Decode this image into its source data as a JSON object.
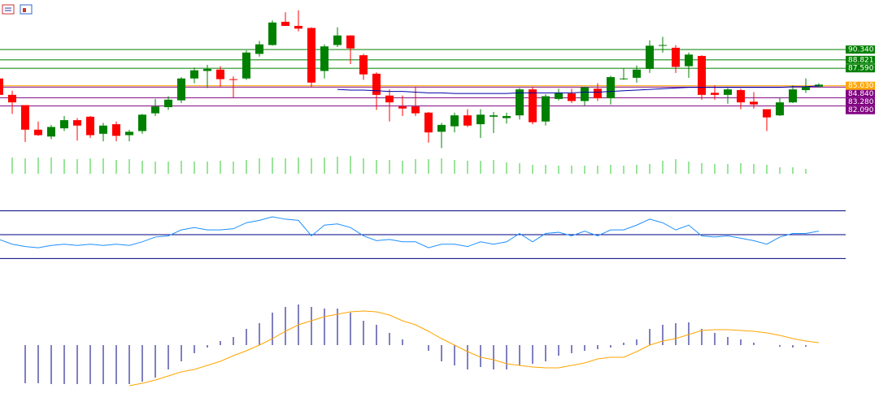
{
  "chart_data": [
    {
      "type": "candlestick",
      "up_color": "#008000",
      "down_color": "#ff0000",
      "ylim": [
        75,
        97
      ],
      "open": [
        86.1,
        83.7,
        82.2,
        78.6,
        77.6,
        78.8,
        80.0,
        80.5,
        78.0,
        79.4,
        77.8,
        78.4,
        81.0,
        81.9,
        82.9,
        86.1,
        87.2,
        87.4,
        86.0,
        86.1,
        89.7,
        91.0,
        94.4,
        93.8,
        93.5,
        87.2,
        91.0,
        92.4,
        89.5,
        86.8,
        83.6,
        82.0,
        82.0,
        81.1,
        78.3,
        79.1,
        80.7,
        79.4,
        80.5,
        80.3,
        80.7,
        84.5,
        79.8,
        83.1,
        83.9,
        82.8,
        84.6,
        83.2,
        86.0,
        86.2,
        87.5,
        91.0,
        90.6,
        87.9,
        89.4,
        84.0,
        83.7,
        84.4,
        82.7,
        81.6,
        80.7,
        82.6,
        84.4,
        84.9
      ],
      "high": [
        86.5,
        84.3,
        82.2,
        79.8,
        79.3,
        80.6,
        80.3,
        80.6,
        79.6,
        79.8,
        78.6,
        80.9,
        83.1,
        83.5,
        86.3,
        87.7,
        88.1,
        87.9,
        86.4,
        90.2,
        91.6,
        94.6,
        95.8,
        96.1,
        93.6,
        91.1,
        93.6,
        92.4,
        89.7,
        87.0,
        84.5,
        83.6,
        84.9,
        81.2,
        79.6,
        81.1,
        81.6,
        81.6,
        81.2,
        81.1,
        84.7,
        84.9,
        83.8,
        84.6,
        84.6,
        84.9,
        85.4,
        86.5,
        87.6,
        88.0,
        91.7,
        92.2,
        91.0,
        89.9,
        89.5,
        85.1,
        84.7,
        84.6,
        84.1,
        81.6,
        83.3,
        85.1,
        86.1,
        85.4
      ],
      "low": [
        83.5,
        80.9,
        76.8,
        77.7,
        77.2,
        78.4,
        77.0,
        77.4,
        76.9,
        76.9,
        76.9,
        78.0,
        80.6,
        81.5,
        82.5,
        85.4,
        84.7,
        84.9,
        83.3,
        85.9,
        89.3,
        90.9,
        93.8,
        93.0,
        84.8,
        86.1,
        90.7,
        88.2,
        85.9,
        81.5,
        79.8,
        80.6,
        80.6,
        76.7,
        75.9,
        78.2,
        79.0,
        77.4,
        78.1,
        79.5,
        80.1,
        79.4,
        79.2,
        82.9,
        82.5,
        82.1,
        82.8,
        82.3,
        85.9,
        85.5,
        86.9,
        89.9,
        86.9,
        86.2,
        83.0,
        83.0,
        82.4,
        81.6,
        81.7,
        78.4,
        80.6,
        82.5,
        84.0,
        84.8
      ],
      "close": [
        83.7,
        82.6,
        78.6,
        77.8,
        79.0,
        80.0,
        79.2,
        77.8,
        79.2,
        77.7,
        78.3,
        80.8,
        82.0,
        83.0,
        86.1,
        87.3,
        87.5,
        86.0,
        85.9,
        89.9,
        91.1,
        94.3,
        93.8,
        93.4,
        85.5,
        90.8,
        92.4,
        90.5,
        86.7,
        83.7,
        82.6,
        81.7,
        81.0,
        78.2,
        79.3,
        80.7,
        79.2,
        80.8,
        80.7,
        80.6,
        84.5,
        79.7,
        83.5,
        84.0,
        82.8,
        84.8,
        83.2,
        86.3,
        86.1,
        87.4,
        90.9,
        91.0,
        87.8,
        89.6,
        83.7,
        83.7,
        84.5,
        82.6,
        82.3,
        80.4,
        82.6,
        84.5,
        84.9,
        85.2
      ],
      "ma": {
        "color": "#0000aa",
        "values": [
          null,
          null,
          null,
          null,
          null,
          null,
          null,
          null,
          null,
          null,
          null,
          null,
          null,
          null,
          null,
          null,
          null,
          null,
          null,
          null,
          null,
          null,
          null,
          null,
          null,
          null,
          84.5,
          84.4,
          84.4,
          84.3,
          84.2,
          84.2,
          84.1,
          84.0,
          84.0,
          83.9,
          83.9,
          83.9,
          83.9,
          83.9,
          84.0,
          84.0,
          84.0,
          84.0,
          84.0,
          84.1,
          84.1,
          84.2,
          84.3,
          84.4,
          84.5,
          84.6,
          84.7,
          84.8,
          84.8,
          84.8,
          84.8,
          84.8,
          84.8,
          84.8,
          84.8,
          84.9,
          84.9,
          85.0
        ]
      },
      "volume": {
        "color": "#32cd32",
        "ylim": [
          0,
          25
        ],
        "values": [
          null,
          20,
          19,
          20,
          20,
          18,
          18,
          19,
          19,
          17,
          18,
          16,
          15,
          15,
          16,
          15,
          15,
          16,
          15,
          17,
          19,
          20,
          19,
          20,
          19,
          20,
          21,
          22,
          19,
          17,
          17,
          16,
          18,
          18,
          19,
          17,
          16,
          16,
          17,
          14,
          13,
          11,
          11,
          10,
          10,
          10,
          10,
          11,
          10,
          11,
          12,
          16,
          18,
          15,
          13,
          12,
          12,
          13,
          12,
          11,
          8,
          8,
          6,
          null
        ]
      },
      "levels": [
        {
          "value": 90.34,
          "label": "90.340",
          "color": "#008000"
        },
        {
          "value": 88.821,
          "label": "88.821",
          "color": "#008000"
        },
        {
          "value": 87.59,
          "label": "87.590",
          "color": "#008000"
        },
        {
          "value": 85.03,
          "label": "85.030",
          "color": "#ffa500"
        },
        {
          "value": 84.84,
          "label": "84.840",
          "color": "#800080"
        },
        {
          "value": 83.28,
          "label": "83.280",
          "color": "#800080"
        },
        {
          "value": 82.09,
          "label": "82.090",
          "color": "#800080"
        }
      ]
    },
    {
      "type": "line",
      "ylim": [
        20,
        80
      ],
      "levels": [
        70,
        50,
        30
      ],
      "level_color": "#000080",
      "series": [
        {
          "color": "#1e90ff",
          "values": [
            46,
            42,
            40,
            39,
            41,
            42,
            41,
            42,
            41,
            42,
            41,
            44,
            48,
            49,
            54,
            56,
            54,
            54,
            55,
            60,
            62,
            65,
            63,
            62,
            49,
            58,
            59,
            56,
            49,
            45,
            46,
            44,
            44,
            39,
            42,
            42,
            40,
            44,
            42,
            44,
            51,
            44,
            51,
            52,
            49,
            53,
            49,
            54,
            54,
            58,
            63,
            60,
            54,
            58,
            49,
            48,
            49,
            47,
            45,
            42,
            48,
            51,
            51,
            53
          ]
        }
      ]
    },
    {
      "type": "bar",
      "ylim": [
        -1.3,
        1.7
      ],
      "color": "#000080",
      "values": [
        null,
        null,
        -0.94,
        -0.94,
        -0.96,
        -0.96,
        -0.96,
        -0.96,
        -0.96,
        -0.96,
        -0.96,
        -0.9,
        -0.8,
        -0.6,
        -0.4,
        -0.2,
        -0.06,
        0.1,
        0.2,
        0.4,
        0.54,
        0.8,
        0.94,
        1.0,
        0.94,
        0.9,
        0.9,
        0.8,
        0.6,
        0.5,
        0.3,
        0.14,
        0.0,
        -0.14,
        -0.4,
        -0.5,
        -0.6,
        -0.54,
        -0.6,
        -0.6,
        -0.5,
        -0.46,
        -0.4,
        -0.26,
        -0.2,
        -0.14,
        -0.1,
        -0.06,
        0.06,
        0.14,
        0.4,
        0.5,
        0.54,
        0.56,
        0.4,
        0.3,
        0.2,
        0.14,
        0.06,
        0.0,
        -0.04,
        -0.06,
        -0.04,
        0.0
      ],
      "line": {
        "color": "#ffa500",
        "values": [
          null,
          null,
          null,
          null,
          null,
          null,
          null,
          null,
          null,
          null,
          -1.0,
          -0.94,
          -0.86,
          -0.76,
          -0.66,
          -0.6,
          -0.5,
          -0.4,
          -0.26,
          -0.14,
          0.0,
          0.16,
          0.34,
          0.5,
          0.6,
          0.7,
          0.76,
          0.82,
          0.84,
          0.82,
          0.74,
          0.6,
          0.5,
          0.34,
          0.16,
          0.0,
          -0.16,
          -0.3,
          -0.36,
          -0.46,
          -0.5,
          -0.54,
          -0.56,
          -0.56,
          -0.5,
          -0.44,
          -0.34,
          -0.3,
          -0.3,
          -0.16,
          0.0,
          0.1,
          0.16,
          0.26,
          0.36,
          0.38,
          0.38,
          0.36,
          0.34,
          0.3,
          0.24,
          0.16,
          0.1,
          0.06
        ]
      }
    }
  ]
}
